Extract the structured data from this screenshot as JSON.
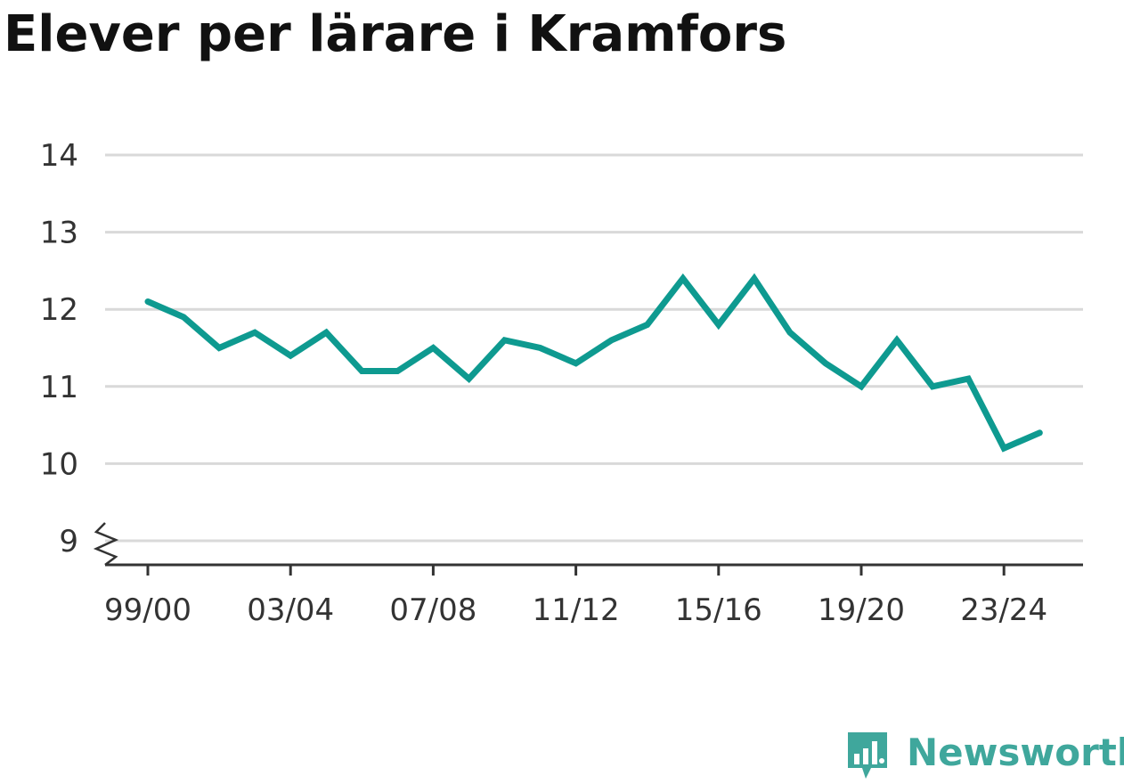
{
  "title": "Elever per lärare i Kramfors",
  "brand": {
    "name": "Newsworthy",
    "color": "#3fa79c",
    "icon": "bar-chart-speech-icon"
  },
  "colors": {
    "line": "#0e9a90",
    "grid": "#d9d9d9",
    "axis": "#333333",
    "text": "#333333"
  },
  "chart_data": {
    "type": "line",
    "title": "Elever per lärare i Kramfors",
    "xlabel": "",
    "ylabel": "",
    "ylim": [
      9,
      14
    ],
    "y_ticks": [
      9,
      10,
      11,
      12,
      13,
      14
    ],
    "y_axis_break": true,
    "grid": true,
    "x_tick_labels": [
      "99/00",
      "03/04",
      "07/08",
      "11/12",
      "15/16",
      "19/20",
      "23/24"
    ],
    "categories": [
      "99/00",
      "00/01",
      "01/02",
      "02/03",
      "03/04",
      "04/05",
      "05/06",
      "06/07",
      "07/08",
      "08/09",
      "09/10",
      "10/11",
      "11/12",
      "12/13",
      "13/14",
      "14/15",
      "15/16",
      "16/17",
      "17/18",
      "18/19",
      "19/20",
      "20/21",
      "21/22",
      "22/23",
      "23/24",
      "24/25"
    ],
    "values": [
      12.1,
      11.9,
      11.5,
      11.7,
      11.4,
      11.7,
      11.2,
      11.2,
      11.5,
      11.1,
      11.6,
      11.5,
      11.3,
      11.6,
      11.8,
      12.4,
      11.8,
      12.4,
      11.7,
      11.3,
      11.0,
      11.6,
      11.0,
      11.1,
      10.2,
      10.4
    ]
  }
}
